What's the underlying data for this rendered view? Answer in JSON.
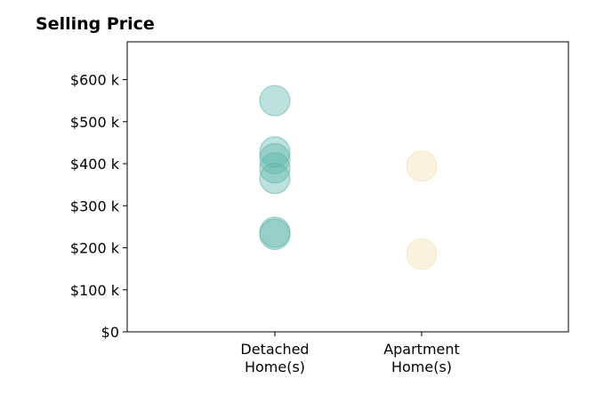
{
  "chart_data": {
    "type": "scatter",
    "title": "Selling Price",
    "categories": [
      "Detached Home(s)",
      "Apartment Home(s)"
    ],
    "category_lines": [
      [
        "Detached",
        "Home(s)"
      ],
      [
        "Apartment",
        "Home(s)"
      ]
    ],
    "ylim": [
      0,
      690000
    ],
    "yticks": [
      0,
      100000,
      200000,
      300000,
      400000,
      500000,
      600000
    ],
    "ytick_labels": [
      "$0",
      "$100 k",
      "$200 k",
      "$300 k",
      "$400 k",
      "$500 k",
      "$600 k"
    ],
    "series": [
      {
        "category": "Detached Home(s)",
        "color": "#5bb5a8",
        "values": [
          550000,
          428000,
          412000,
          390000,
          365000,
          237000,
          232000
        ]
      },
      {
        "category": "Apartment Home(s)",
        "color": "#f3dfac",
        "values": [
          394000,
          185000
        ]
      }
    ],
    "grid": false,
    "legend": "none"
  }
}
